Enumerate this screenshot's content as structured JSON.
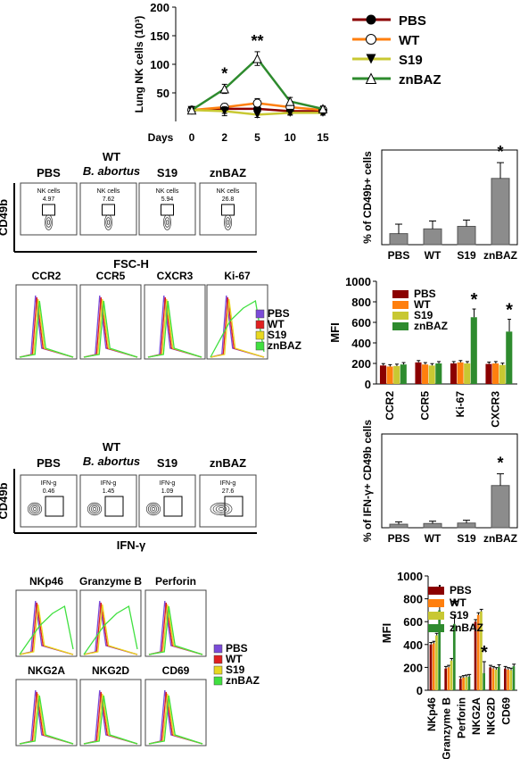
{
  "colors": {
    "PBS": "#8b0000",
    "WT": "#ff7f0e",
    "S19": "#c8c832",
    "znBAZ": "#2e8b2e",
    "flow_PBS": "#7b4bd8",
    "flow_WT": "#e02020",
    "flow_S19": "#e8d820",
    "flow_znBAZ": "#40e040",
    "gray_bar": "#8c8c8c"
  },
  "chart_data": [
    {
      "id": "lung_nk",
      "type": "line",
      "ylabel": "Lung NK cells (10³)",
      "xlabel": "Days",
      "x": [
        "0",
        "2",
        "5",
        "10",
        "15"
      ],
      "yticks": [
        "50",
        "100",
        "150",
        "200"
      ],
      "ylim": [
        0,
        200
      ],
      "series": [
        {
          "name": "PBS",
          "marker": "circle-filled",
          "values": [
            20,
            22,
            22,
            18,
            18
          ],
          "err": [
            3,
            8,
            5,
            5,
            3
          ]
        },
        {
          "name": "WT",
          "marker": "circle-open",
          "values": [
            20,
            25,
            32,
            25,
            20
          ],
          "err": [
            3,
            6,
            8,
            5,
            4
          ]
        },
        {
          "name": "S19",
          "marker": "triangle-down",
          "values": [
            20,
            18,
            12,
            15,
            15
          ],
          "err": [
            3,
            8,
            5,
            4,
            4
          ]
        },
        {
          "name": "znBAZ",
          "marker": "triangle-open",
          "values": [
            20,
            57,
            110,
            35,
            22
          ],
          "err": [
            3,
            8,
            12,
            7,
            5
          ]
        }
      ],
      "annotations": [
        {
          "x": "2",
          "text": "*"
        },
        {
          "x": "5",
          "text": "**"
        }
      ],
      "legend": [
        "PBS",
        "WT",
        "S19",
        "znBAZ"
      ]
    },
    {
      "id": "cd49b_percent",
      "type": "bar",
      "ylabel": "% of CD49b+ cells",
      "categories": [
        "PBS",
        "WT",
        "S19",
        "znBAZ"
      ],
      "values": [
        3.5,
        5,
        5.8,
        21
      ],
      "err": [
        3,
        2.5,
        2,
        5
      ],
      "ylim": [
        0,
        30
      ],
      "annotation": "*"
    },
    {
      "id": "mfi_receptors",
      "type": "bar",
      "ylabel": "MFI",
      "categories": [
        "CCR2",
        "CCR5",
        "Ki-67",
        "CXCR3"
      ],
      "yticks": [
        "0",
        "200",
        "400",
        "600",
        "800",
        "1000"
      ],
      "ylim": [
        0,
        1000
      ],
      "series": [
        {
          "name": "PBS",
          "values": [
            180,
            210,
            200,
            195
          ]
        },
        {
          "name": "WT",
          "values": [
            170,
            190,
            210,
            200
          ]
        },
        {
          "name": "S19",
          "values": [
            175,
            180,
            200,
            185
          ]
        },
        {
          "name": "znBAZ",
          "values": [
            190,
            200,
            650,
            510
          ]
        }
      ],
      "err": [
        30,
        30,
        40,
        60
      ],
      "stars": [
        "Ki-67",
        "CXCR3"
      ]
    },
    {
      "id": "ifng_percent",
      "type": "bar",
      "ylabel": "% of IFN-γ+ CD49b cells",
      "categories": [
        "PBS",
        "WT",
        "S19",
        "znBAZ"
      ],
      "values": [
        1.5,
        1.8,
        2,
        18
      ],
      "err": [
        1,
        1,
        1.2,
        5
      ],
      "ylim": [
        0,
        40
      ],
      "annotation": "*"
    },
    {
      "id": "mfi_effectors",
      "type": "bar",
      "ylabel": "MFI",
      "categories": [
        "NKp46",
        "Granzyme B",
        "Perforin",
        "NKG2A",
        "NKG2D",
        "CD69"
      ],
      "yticks": [
        "0",
        "200",
        "400",
        "600",
        "800",
        "1000"
      ],
      "ylim": [
        0,
        1000
      ],
      "series": [
        {
          "name": "PBS",
          "values": [
            400,
            190,
            100,
            600,
            200,
            190
          ]
        },
        {
          "name": "WT",
          "values": [
            410,
            200,
            110,
            660,
            190,
            180
          ]
        },
        {
          "name": "S19",
          "values": [
            480,
            260,
            115,
            690,
            180,
            175
          ]
        },
        {
          "name": "znBAZ",
          "values": [
            700,
            580,
            120,
            150,
            205,
            210
          ]
        }
      ],
      "err": [
        40,
        40,
        20,
        50,
        20,
        20
      ],
      "stars": [
        "NKp46",
        "Granzyme B",
        "NKG2A"
      ]
    }
  ],
  "flow1": {
    "header_wt": "WT",
    "header_wt2": "B. abortus",
    "panels": [
      {
        "title": "PBS",
        "gate": "NK cells",
        "value": "4.97"
      },
      {
        "title": "",
        "gate": "NK cells",
        "value": "7.62"
      },
      {
        "title": "S19",
        "gate": "NK cells",
        "value": "5.94"
      },
      {
        "title": "znBAZ",
        "gate": "NK cells",
        "value": "26.8"
      }
    ],
    "ylabel": "CD49b",
    "xlabel": "FSC-H"
  },
  "hist1": {
    "titles": [
      "CCR2",
      "CCR5",
      "CXCR3",
      "Ki-67"
    ],
    "legend": [
      "PBS",
      "WT",
      "S19",
      "znBAZ"
    ]
  },
  "flow2": {
    "header_wt": "WT",
    "header_wt2": "B. abortus",
    "panels": [
      {
        "title": "PBS",
        "gate": "IFN-g",
        "value": "0.46"
      },
      {
        "title": "",
        "gate": "IFN-g",
        "value": "1.45"
      },
      {
        "title": "S19",
        "gate": "IFN-g",
        "value": "1.09"
      },
      {
        "title": "znBAZ",
        "gate": "IFN-g",
        "value": "27.6"
      }
    ],
    "ylabel": "CD49b",
    "xlabel": "IFN-γ"
  },
  "hist2": {
    "titles": [
      "NKp46",
      "Granzyme B",
      "Perforin",
      "NKG2A",
      "NKG2D",
      "CD69"
    ],
    "legend": [
      "PBS",
      "WT",
      "S19",
      "znBAZ"
    ]
  }
}
